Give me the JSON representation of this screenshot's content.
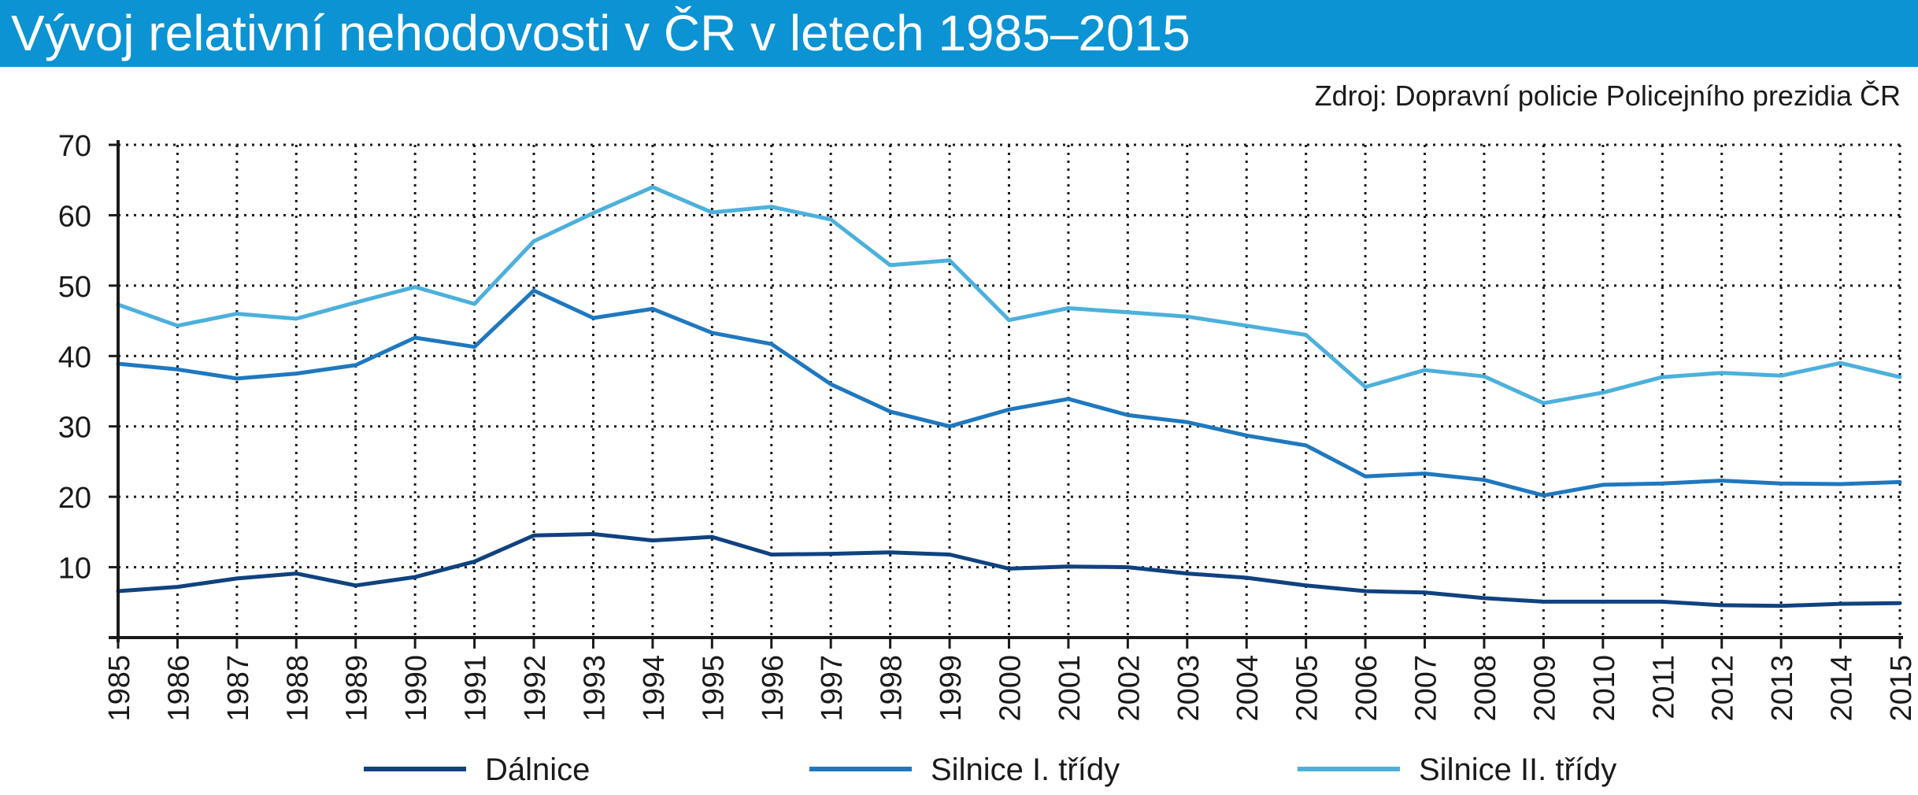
{
  "header": {
    "title": "Vývoj relativní nehodovosti v ČR v letech 1985–2015",
    "source": "Zdroj: Dopravní policie Policejního prezidia ČR",
    "bar_color": "#0b93d3"
  },
  "chart_data": {
    "type": "line",
    "title": "Vývoj relativní nehodovosti v ČR v letech 1985–2015",
    "xlabel": "",
    "ylabel": "",
    "ylim": [
      0,
      70
    ],
    "yticks": [
      "10",
      "20",
      "30",
      "40",
      "50",
      "60",
      "70"
    ],
    "grid": "dotted, on",
    "legend_position": "bottom",
    "x": [
      "1985",
      "1986",
      "1987",
      "1988",
      "1989",
      "1990",
      "1991",
      "1992",
      "1993",
      "1994",
      "1995",
      "1996",
      "1997",
      "1998",
      "1999",
      "2000",
      "2001",
      "2002",
      "2003",
      "2004",
      "2005",
      "2006",
      "2007",
      "2008",
      "2009",
      "2010",
      "2011",
      "2012",
      "2013",
      "2014",
      "2015"
    ],
    "series": [
      {
        "name": "Dálnice",
        "color": "#10427f",
        "values": [
          6.6,
          7.2,
          8.4,
          9.1,
          7.4,
          8.6,
          10.8,
          14.5,
          14.7,
          13.8,
          14.3,
          11.8,
          11.9,
          12.1,
          11.8,
          9.8,
          10.1,
          10.0,
          9.1,
          8.5,
          7.4,
          6.6,
          6.4,
          5.6,
          5.1,
          5.1,
          5.1,
          4.6,
          4.5,
          4.8,
          4.9
        ]
      },
      {
        "name": "Silnice I. třídy",
        "color": "#1f78bf",
        "values": [
          38.9,
          38.1,
          36.8,
          37.5,
          38.7,
          42.6,
          41.3,
          49.3,
          45.4,
          46.7,
          43.3,
          41.7,
          36.0,
          32.1,
          30.0,
          32.4,
          33.9,
          31.6,
          30.6,
          28.7,
          27.3,
          22.9,
          23.3,
          22.4,
          20.2,
          21.7,
          21.9,
          22.3,
          21.9,
          21.8,
          22.1
        ]
      },
      {
        "name": "Silnice II. třídy",
        "color": "#4cb0dc",
        "values": [
          47.3,
          44.3,
          46.0,
          45.3,
          47.6,
          49.8,
          47.4,
          56.3,
          60.3,
          64.0,
          60.4,
          61.2,
          59.4,
          52.9,
          53.6,
          45.1,
          46.8,
          46.2,
          45.6,
          44.3,
          43.0,
          35.6,
          38.0,
          37.1,
          33.3,
          34.8,
          37.0,
          37.6,
          37.2,
          39.0,
          37.0
        ]
      }
    ]
  }
}
